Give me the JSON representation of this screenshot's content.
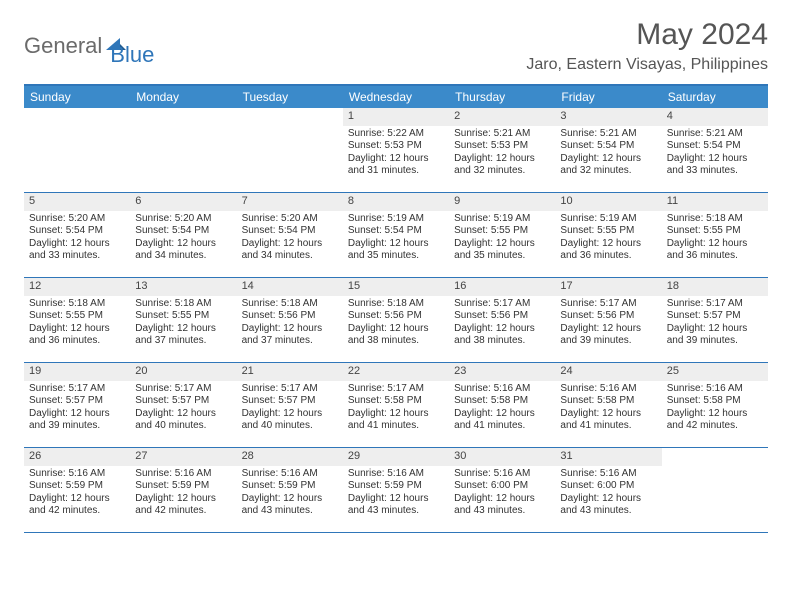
{
  "brand": {
    "part1": "General",
    "part2": "Blue"
  },
  "title": "May 2024",
  "location": "Jaro, Eastern Visayas, Philippines",
  "colors": {
    "accent": "#2f76b9",
    "header_bg": "#3b8aca",
    "daynum_bg": "#eeeeee",
    "text": "#333333",
    "muted": "#555555"
  },
  "weekdays": [
    "Sunday",
    "Monday",
    "Tuesday",
    "Wednesday",
    "Thursday",
    "Friday",
    "Saturday"
  ],
  "weeks": [
    [
      {
        "day": "",
        "sunrise": "",
        "sunset": "",
        "daylight1": "",
        "daylight2": ""
      },
      {
        "day": "",
        "sunrise": "",
        "sunset": "",
        "daylight1": "",
        "daylight2": ""
      },
      {
        "day": "",
        "sunrise": "",
        "sunset": "",
        "daylight1": "",
        "daylight2": ""
      },
      {
        "day": "1",
        "sunrise": "Sunrise: 5:22 AM",
        "sunset": "Sunset: 5:53 PM",
        "daylight1": "Daylight: 12 hours",
        "daylight2": "and 31 minutes."
      },
      {
        "day": "2",
        "sunrise": "Sunrise: 5:21 AM",
        "sunset": "Sunset: 5:53 PM",
        "daylight1": "Daylight: 12 hours",
        "daylight2": "and 32 minutes."
      },
      {
        "day": "3",
        "sunrise": "Sunrise: 5:21 AM",
        "sunset": "Sunset: 5:54 PM",
        "daylight1": "Daylight: 12 hours",
        "daylight2": "and 32 minutes."
      },
      {
        "day": "4",
        "sunrise": "Sunrise: 5:21 AM",
        "sunset": "Sunset: 5:54 PM",
        "daylight1": "Daylight: 12 hours",
        "daylight2": "and 33 minutes."
      }
    ],
    [
      {
        "day": "5",
        "sunrise": "Sunrise: 5:20 AM",
        "sunset": "Sunset: 5:54 PM",
        "daylight1": "Daylight: 12 hours",
        "daylight2": "and 33 minutes."
      },
      {
        "day": "6",
        "sunrise": "Sunrise: 5:20 AM",
        "sunset": "Sunset: 5:54 PM",
        "daylight1": "Daylight: 12 hours",
        "daylight2": "and 34 minutes."
      },
      {
        "day": "7",
        "sunrise": "Sunrise: 5:20 AM",
        "sunset": "Sunset: 5:54 PM",
        "daylight1": "Daylight: 12 hours",
        "daylight2": "and 34 minutes."
      },
      {
        "day": "8",
        "sunrise": "Sunrise: 5:19 AM",
        "sunset": "Sunset: 5:54 PM",
        "daylight1": "Daylight: 12 hours",
        "daylight2": "and 35 minutes."
      },
      {
        "day": "9",
        "sunrise": "Sunrise: 5:19 AM",
        "sunset": "Sunset: 5:55 PM",
        "daylight1": "Daylight: 12 hours",
        "daylight2": "and 35 minutes."
      },
      {
        "day": "10",
        "sunrise": "Sunrise: 5:19 AM",
        "sunset": "Sunset: 5:55 PM",
        "daylight1": "Daylight: 12 hours",
        "daylight2": "and 36 minutes."
      },
      {
        "day": "11",
        "sunrise": "Sunrise: 5:18 AM",
        "sunset": "Sunset: 5:55 PM",
        "daylight1": "Daylight: 12 hours",
        "daylight2": "and 36 minutes."
      }
    ],
    [
      {
        "day": "12",
        "sunrise": "Sunrise: 5:18 AM",
        "sunset": "Sunset: 5:55 PM",
        "daylight1": "Daylight: 12 hours",
        "daylight2": "and 36 minutes."
      },
      {
        "day": "13",
        "sunrise": "Sunrise: 5:18 AM",
        "sunset": "Sunset: 5:55 PM",
        "daylight1": "Daylight: 12 hours",
        "daylight2": "and 37 minutes."
      },
      {
        "day": "14",
        "sunrise": "Sunrise: 5:18 AM",
        "sunset": "Sunset: 5:56 PM",
        "daylight1": "Daylight: 12 hours",
        "daylight2": "and 37 minutes."
      },
      {
        "day": "15",
        "sunrise": "Sunrise: 5:18 AM",
        "sunset": "Sunset: 5:56 PM",
        "daylight1": "Daylight: 12 hours",
        "daylight2": "and 38 minutes."
      },
      {
        "day": "16",
        "sunrise": "Sunrise: 5:17 AM",
        "sunset": "Sunset: 5:56 PM",
        "daylight1": "Daylight: 12 hours",
        "daylight2": "and 38 minutes."
      },
      {
        "day": "17",
        "sunrise": "Sunrise: 5:17 AM",
        "sunset": "Sunset: 5:56 PM",
        "daylight1": "Daylight: 12 hours",
        "daylight2": "and 39 minutes."
      },
      {
        "day": "18",
        "sunrise": "Sunrise: 5:17 AM",
        "sunset": "Sunset: 5:57 PM",
        "daylight1": "Daylight: 12 hours",
        "daylight2": "and 39 minutes."
      }
    ],
    [
      {
        "day": "19",
        "sunrise": "Sunrise: 5:17 AM",
        "sunset": "Sunset: 5:57 PM",
        "daylight1": "Daylight: 12 hours",
        "daylight2": "and 39 minutes."
      },
      {
        "day": "20",
        "sunrise": "Sunrise: 5:17 AM",
        "sunset": "Sunset: 5:57 PM",
        "daylight1": "Daylight: 12 hours",
        "daylight2": "and 40 minutes."
      },
      {
        "day": "21",
        "sunrise": "Sunrise: 5:17 AM",
        "sunset": "Sunset: 5:57 PM",
        "daylight1": "Daylight: 12 hours",
        "daylight2": "and 40 minutes."
      },
      {
        "day": "22",
        "sunrise": "Sunrise: 5:17 AM",
        "sunset": "Sunset: 5:58 PM",
        "daylight1": "Daylight: 12 hours",
        "daylight2": "and 41 minutes."
      },
      {
        "day": "23",
        "sunrise": "Sunrise: 5:16 AM",
        "sunset": "Sunset: 5:58 PM",
        "daylight1": "Daylight: 12 hours",
        "daylight2": "and 41 minutes."
      },
      {
        "day": "24",
        "sunrise": "Sunrise: 5:16 AM",
        "sunset": "Sunset: 5:58 PM",
        "daylight1": "Daylight: 12 hours",
        "daylight2": "and 41 minutes."
      },
      {
        "day": "25",
        "sunrise": "Sunrise: 5:16 AM",
        "sunset": "Sunset: 5:58 PM",
        "daylight1": "Daylight: 12 hours",
        "daylight2": "and 42 minutes."
      }
    ],
    [
      {
        "day": "26",
        "sunrise": "Sunrise: 5:16 AM",
        "sunset": "Sunset: 5:59 PM",
        "daylight1": "Daylight: 12 hours",
        "daylight2": "and 42 minutes."
      },
      {
        "day": "27",
        "sunrise": "Sunrise: 5:16 AM",
        "sunset": "Sunset: 5:59 PM",
        "daylight1": "Daylight: 12 hours",
        "daylight2": "and 42 minutes."
      },
      {
        "day": "28",
        "sunrise": "Sunrise: 5:16 AM",
        "sunset": "Sunset: 5:59 PM",
        "daylight1": "Daylight: 12 hours",
        "daylight2": "and 43 minutes."
      },
      {
        "day": "29",
        "sunrise": "Sunrise: 5:16 AM",
        "sunset": "Sunset: 5:59 PM",
        "daylight1": "Daylight: 12 hours",
        "daylight2": "and 43 minutes."
      },
      {
        "day": "30",
        "sunrise": "Sunrise: 5:16 AM",
        "sunset": "Sunset: 6:00 PM",
        "daylight1": "Daylight: 12 hours",
        "daylight2": "and 43 minutes."
      },
      {
        "day": "31",
        "sunrise": "Sunrise: 5:16 AM",
        "sunset": "Sunset: 6:00 PM",
        "daylight1": "Daylight: 12 hours",
        "daylight2": "and 43 minutes."
      },
      {
        "day": "",
        "sunrise": "",
        "sunset": "",
        "daylight1": "",
        "daylight2": ""
      }
    ]
  ]
}
